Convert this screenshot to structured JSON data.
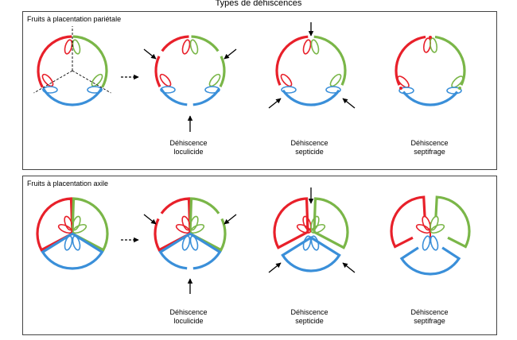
{
  "title": "Types de déhiscences",
  "panels": [
    {
      "label": "Fruits à placentation pariétale",
      "captions": [
        {
          "line1": "Déhiscence",
          "line2": "loculicide"
        },
        {
          "line1": "Déhiscence",
          "line2": "septicide"
        },
        {
          "line1": "Déhiscence",
          "line2": "septifrage"
        }
      ]
    },
    {
      "label": "Fruits à placentation axile",
      "captions": [
        {
          "line1": "Déhiscence",
          "line2": "loculicide"
        },
        {
          "line1": "Déhiscence",
          "line2": "septicide"
        },
        {
          "line1": "Déhiscence",
          "line2": "septifrage"
        }
      ]
    }
  ],
  "colors": {
    "red": "#e8202a",
    "green": "#7ab648",
    "blue": "#3a8fd9"
  }
}
